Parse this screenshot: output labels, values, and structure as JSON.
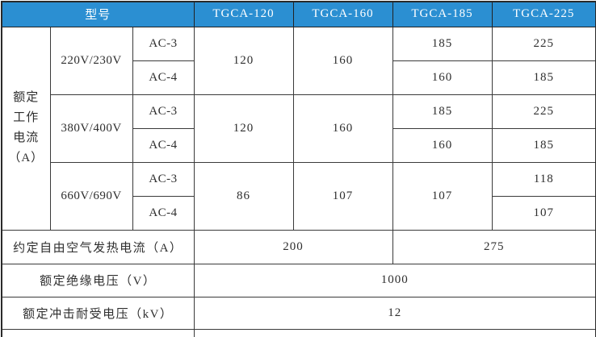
{
  "colors": {
    "header_bg": "#2b8fd2",
    "header_text": "#ffffff",
    "grid_border": "#3a3a3a",
    "cell_text": "#2e2e2e",
    "cell_bg": "#ffffff"
  },
  "table": {
    "header": {
      "model_label": "型号",
      "models": [
        "TGCA-120",
        "TGCA-160",
        "TGCA-185",
        "TGCA-225"
      ]
    },
    "left_label_lines": [
      "额定",
      "工作",
      "电流",
      "（A）"
    ],
    "groups": [
      {
        "voltage": "220V/230V",
        "duty_ac3": "AC-3",
        "duty_ac4": "AC-4",
        "tgca120": "120",
        "tgca160": "160",
        "tgca185_ac3": "185",
        "tgca185_ac4": "160",
        "tgca225_ac3": "225",
        "tgca225_ac4": "185"
      },
      {
        "voltage": "380V/400V",
        "duty_ac3": "AC-3",
        "duty_ac4": "AC-4",
        "tgca120": "120",
        "tgca160": "160",
        "tgca185_ac3": "185",
        "tgca185_ac4": "160",
        "tgca225_ac3": "225",
        "tgca225_ac4": "185"
      },
      {
        "voltage": "660V/690V",
        "duty_ac3": "AC-3",
        "duty_ac4": "AC-4",
        "tgca120": "86",
        "tgca160": "107",
        "tgca185": "107",
        "tgca225_ac3": "118",
        "tgca225_ac4": "107"
      }
    ],
    "footer_rows": [
      {
        "label": "约定自由空气发热电流（A）",
        "value_120_160": "200",
        "value_185_225": "275"
      },
      {
        "label": "额定绝缘电压（V）",
        "value": "1000"
      },
      {
        "label": "额定冲击耐受电压（kV）",
        "value": "12"
      }
    ]
  }
}
